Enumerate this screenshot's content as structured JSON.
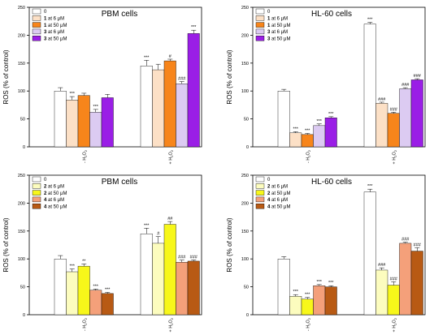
{
  "chart_data": [
    {
      "type": "bar",
      "title": "PBM cells",
      "ylabel": "ROS (% of control)",
      "ylim": [
        0,
        250
      ],
      "yticks": [
        "0",
        "50",
        "100",
        "150",
        "200",
        "250"
      ],
      "categories": [
        "- H2O2",
        "+ H2O2"
      ],
      "category_labels": [
        [
          "- H",
          "2",
          "O",
          "2"
        ],
        [
          "+ H",
          "2",
          "O",
          "2"
        ]
      ],
      "series": [
        {
          "name": "0",
          "legend": {
            "num": "",
            "text": "0"
          },
          "color": "#ffffff",
          "values": [
            100,
            145
          ],
          "errors": [
            6,
            10
          ],
          "annotations": [
            "",
            "***"
          ]
        },
        {
          "name": "1 at 6 µM",
          "legend": {
            "num": "1",
            "text": " at 6 μM"
          },
          "color": "#fce0c6",
          "values": [
            84,
            138
          ],
          "errors": [
            6,
            10
          ],
          "annotations": [
            "***",
            ""
          ]
        },
        {
          "name": "1 at 50 µM",
          "legend": {
            "num": "1",
            "text": " at 50 μM"
          },
          "color": "#f7851b",
          "values": [
            92,
            154
          ],
          "errors": [
            4,
            3
          ],
          "annotations": [
            "",
            "#"
          ]
        },
        {
          "name": "3 at 6 µM",
          "legend": {
            "num": "3",
            "text": " at 6 μM"
          },
          "color": "#dccbf2",
          "values": [
            62,
            113
          ],
          "errors": [
            5,
            4
          ],
          "annotations": [
            "***",
            "###"
          ]
        },
        {
          "name": "3 at 50 µM",
          "legend": {
            "num": "3",
            "text": " at 50 μM"
          },
          "color": "#9a1ee6",
          "values": [
            88,
            203
          ],
          "errors": [
            6,
            6
          ],
          "annotations": [
            "",
            "***"
          ]
        }
      ]
    },
    {
      "type": "bar",
      "title": "HL-60 cells",
      "ylabel": "ROS (% of control)",
      "ylim": [
        0,
        250
      ],
      "yticks": [
        "0",
        "50",
        "100",
        "150",
        "200",
        "250"
      ],
      "categories": [
        "- H2O2",
        "+ H2O2"
      ],
      "category_labels": [
        [
          "- H",
          "2",
          "O",
          "2"
        ],
        [
          "+ H",
          "2",
          "O",
          "2"
        ]
      ],
      "series": [
        {
          "name": "0",
          "legend": {
            "num": "",
            "text": "0"
          },
          "color": "#ffffff",
          "values": [
            100,
            220
          ],
          "errors": [
            3,
            3
          ],
          "annotations": [
            "",
            "***"
          ]
        },
        {
          "name": "1 at 6 µM",
          "legend": {
            "num": "1",
            "text": " at 6 μM"
          },
          "color": "#fce0c6",
          "values": [
            25,
            78
          ],
          "errors": [
            2,
            2
          ],
          "annotations": [
            "***",
            "###"
          ]
        },
        {
          "name": "1 at 50 µM",
          "legend": {
            "num": "1",
            "text": " at 50 μM"
          },
          "color": "#f7851b",
          "values": [
            22,
            60
          ],
          "errors": [
            2,
            2
          ],
          "annotations": [
            "***",
            "###"
          ]
        },
        {
          "name": "3 at 6 µM",
          "legend": {
            "num": "3",
            "text": " at 6 μM"
          },
          "color": "#dccbf2",
          "values": [
            38,
            104
          ],
          "errors": [
            3,
            2
          ],
          "annotations": [
            "***",
            "###"
          ]
        },
        {
          "name": "3 at 50 µM",
          "legend": {
            "num": "3",
            "text": " at 50 μM"
          },
          "color": "#9a1ee6",
          "values": [
            52,
            120
          ],
          "errors": [
            2,
            2
          ],
          "annotations": [
            "***",
            "###"
          ]
        }
      ]
    },
    {
      "type": "bar",
      "title": "PBM cells",
      "ylabel": "ROS (% of control)",
      "ylim": [
        0,
        250
      ],
      "yticks": [
        "0",
        "50",
        "100",
        "150",
        "200",
        "250"
      ],
      "categories": [
        "- H2O2",
        "+ H2O2"
      ],
      "category_labels": [
        [
          "- H",
          "2",
          "O",
          "2"
        ],
        [
          "+ H",
          "2",
          "O",
          "2"
        ]
      ],
      "series": [
        {
          "name": "0",
          "legend": {
            "num": "",
            "text": "0"
          },
          "color": "#ffffff",
          "values": [
            100,
            145
          ],
          "errors": [
            6,
            10
          ],
          "annotations": [
            "",
            "***"
          ]
        },
        {
          "name": "2 at 6 µM",
          "legend": {
            "num": "2",
            "text": " at 6 μM"
          },
          "color": "#fcfcbe",
          "values": [
            77,
            128
          ],
          "errors": [
            5,
            12
          ],
          "annotations": [
            "***",
            "#"
          ]
        },
        {
          "name": "2 at 50 µM",
          "legend": {
            "num": "2",
            "text": " at 50 μM"
          },
          "color": "#f7f71a",
          "values": [
            87,
            162
          ],
          "errors": [
            4,
            5
          ],
          "annotations": [
            "**",
            "##"
          ]
        },
        {
          "name": "4 at 6 µM",
          "legend": {
            "num": "4",
            "text": " at 6 μM"
          },
          "color": "#f4a07a",
          "values": [
            44,
            94
          ],
          "errors": [
            2,
            4
          ],
          "annotations": [
            "***",
            "###"
          ]
        },
        {
          "name": "4 at 50 µM",
          "legend": {
            "num": "4",
            "text": " at 50 μM"
          },
          "color": "#b85a14",
          "values": [
            38,
            96
          ],
          "errors": [
            2,
            2
          ],
          "annotations": [
            "***",
            "###"
          ]
        }
      ]
    },
    {
      "type": "bar",
      "title": "HL-60 cells",
      "ylabel": "ROS (% of control)",
      "ylim": [
        0,
        250
      ],
      "yticks": [
        "0",
        "50",
        "100",
        "150",
        "200",
        "250"
      ],
      "categories": [
        "- H2O2",
        "+ H2O2"
      ],
      "category_labels": [
        [
          "- H",
          "2",
          "O",
          "2"
        ],
        [
          "+ H",
          "2",
          "O",
          "2"
        ]
      ],
      "series": [
        {
          "name": "0",
          "legend": {
            "num": "",
            "text": "0"
          },
          "color": "#ffffff",
          "values": [
            100,
            220
          ],
          "errors": [
            4,
            5
          ],
          "annotations": [
            "",
            "***"
          ]
        },
        {
          "name": "2 at 6 µM",
          "legend": {
            "num": "2",
            "text": " at 6 μM"
          },
          "color": "#fcfcbe",
          "values": [
            33,
            80
          ],
          "errors": [
            3,
            4
          ],
          "annotations": [
            "***",
            "###"
          ]
        },
        {
          "name": "2 at 50 µM",
          "legend": {
            "num": "2",
            "text": " at 50 μM"
          },
          "color": "#f7f71a",
          "values": [
            28,
            53
          ],
          "errors": [
            3,
            6
          ],
          "annotations": [
            "***",
            "###"
          ]
        },
        {
          "name": "4 at 6 µM",
          "legend": {
            "num": "4",
            "text": " at 6 μM"
          },
          "color": "#f4a07a",
          "values": [
            52,
            128
          ],
          "errors": [
            2,
            2
          ],
          "annotations": [
            "***",
            "###"
          ]
        },
        {
          "name": "4 at 50 µM",
          "legend": {
            "num": "4",
            "text": " at 50 μM"
          },
          "color": "#b85a14",
          "values": [
            50,
            114
          ],
          "errors": [
            2,
            6
          ],
          "annotations": [
            "***",
            "###"
          ]
        }
      ]
    }
  ]
}
